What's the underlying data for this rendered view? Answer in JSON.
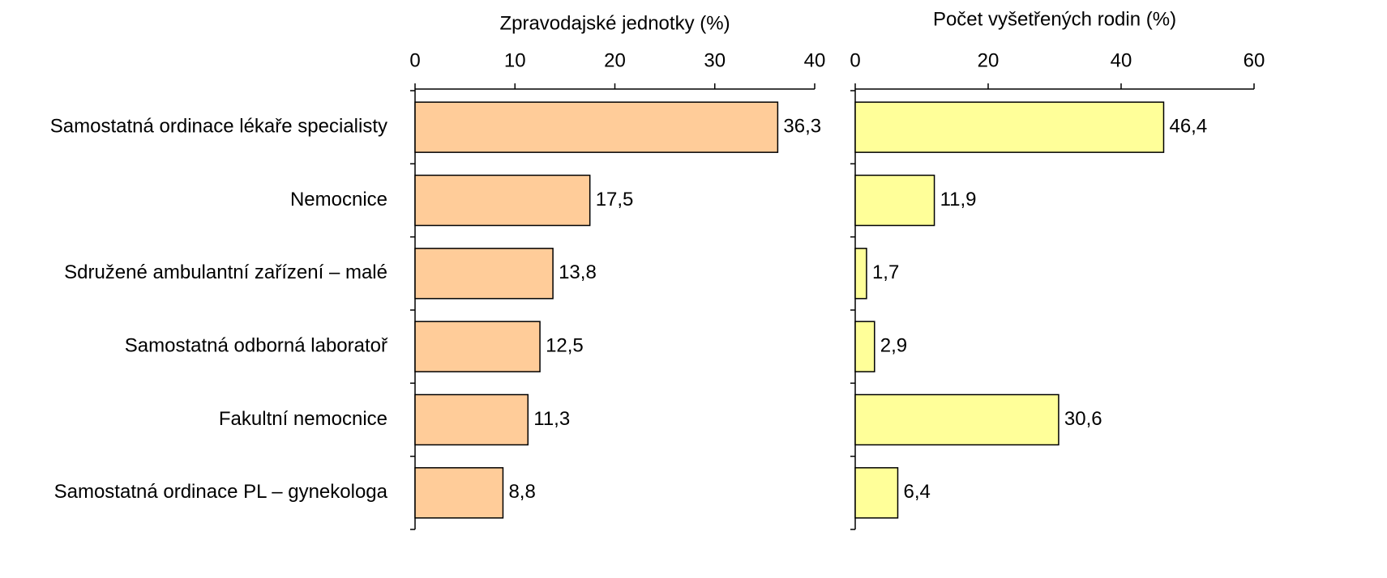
{
  "chart_data": [
    {
      "type": "bar",
      "orientation": "horizontal",
      "title": "Zpravodajské jednotky (%)",
      "categories": [
        "Samostatná ordinace lékaře specialisty",
        "Nemocnice",
        "Sdružené ambulantní zařízení – malé",
        "Samostatná odborná laboratoř",
        "Fakultní nemocnice",
        "Samostatná ordinace PL – gynekologa"
      ],
      "values": [
        36.3,
        17.5,
        13.8,
        12.5,
        11.3,
        8.8
      ],
      "value_labels": [
        "36,3",
        "17,5",
        "13,8",
        "12,5",
        "11,3",
        "8,8"
      ],
      "color": "#ffcc99",
      "xlim": [
        0,
        40
      ],
      "xticks": [
        0,
        10,
        20,
        30,
        40
      ]
    },
    {
      "type": "bar",
      "orientation": "horizontal",
      "title": "Počet vyšetřených rodin (%)",
      "values": [
        46.4,
        11.9,
        1.7,
        2.9,
        30.6,
        6.4
      ],
      "value_labels": [
        "46,4",
        "11,9",
        "1,7",
        "2,9",
        "30,6",
        "6,4"
      ],
      "color": "#ffff99",
      "xlim": [
        0,
        60
      ],
      "xticks": [
        0,
        20,
        40,
        60
      ]
    }
  ]
}
